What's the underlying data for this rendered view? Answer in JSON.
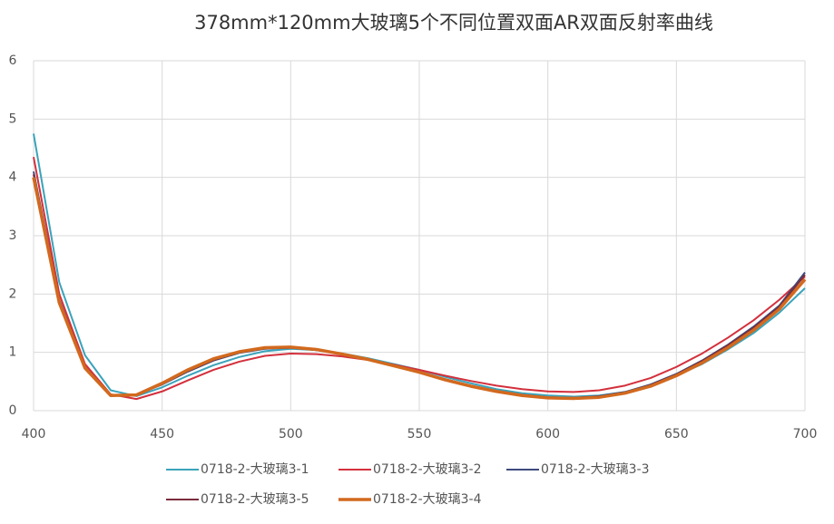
{
  "chart_data": {
    "type": "line",
    "title": "378mm*120mm大玻璃5个不同位置双面AR双面反射率曲线",
    "x": [
      400,
      410,
      420,
      430,
      440,
      450,
      460,
      470,
      480,
      490,
      500,
      510,
      520,
      530,
      540,
      550,
      560,
      570,
      580,
      590,
      600,
      610,
      620,
      630,
      640,
      650,
      660,
      670,
      680,
      690,
      700
    ],
    "series": [
      {
        "name": "0718-2-大玻璃3-1",
        "color": "#3aa3bb",
        "width": 2,
        "values": [
          4.75,
          2.2,
          0.95,
          0.35,
          0.25,
          0.4,
          0.6,
          0.78,
          0.92,
          1.02,
          1.06,
          1.04,
          0.98,
          0.9,
          0.8,
          0.7,
          0.58,
          0.47,
          0.37,
          0.3,
          0.26,
          0.24,
          0.26,
          0.32,
          0.43,
          0.6,
          0.8,
          1.05,
          1.33,
          1.68,
          2.1
        ]
      },
      {
        "name": "0718-2-大玻璃3-2",
        "color": "#d3303c",
        "width": 2,
        "values": [
          4.35,
          2.0,
          0.8,
          0.28,
          0.2,
          0.33,
          0.52,
          0.7,
          0.84,
          0.94,
          0.98,
          0.97,
          0.93,
          0.87,
          0.79,
          0.7,
          0.6,
          0.51,
          0.43,
          0.37,
          0.33,
          0.32,
          0.35,
          0.43,
          0.56,
          0.75,
          0.98,
          1.25,
          1.55,
          1.9,
          2.3
        ]
      },
      {
        "name": "0718-2-大玻璃3-3",
        "color": "#3d4a7c",
        "width": 2,
        "values": [
          4.1,
          1.9,
          0.75,
          0.27,
          0.27,
          0.45,
          0.67,
          0.86,
          0.99,
          1.06,
          1.08,
          1.04,
          0.97,
          0.88,
          0.77,
          0.66,
          0.54,
          0.43,
          0.34,
          0.27,
          0.23,
          0.22,
          0.25,
          0.32,
          0.45,
          0.63,
          0.86,
          1.13,
          1.44,
          1.8,
          2.37
        ]
      },
      {
        "name": "0718-2-大玻璃3-5",
        "color": "#7b2d3c",
        "width": 2,
        "values": [
          4.05,
          1.88,
          0.74,
          0.27,
          0.27,
          0.46,
          0.68,
          0.87,
          1.0,
          1.07,
          1.08,
          1.04,
          0.97,
          0.88,
          0.77,
          0.66,
          0.54,
          0.43,
          0.34,
          0.27,
          0.23,
          0.22,
          0.24,
          0.31,
          0.44,
          0.62,
          0.85,
          1.12,
          1.42,
          1.78,
          2.33
        ]
      },
      {
        "name": "0718-2-大玻璃3-4",
        "color": "#d2691e",
        "width": 3.5,
        "values": [
          4.0,
          1.85,
          0.73,
          0.26,
          0.27,
          0.47,
          0.7,
          0.89,
          1.01,
          1.08,
          1.09,
          1.05,
          0.97,
          0.88,
          0.77,
          0.66,
          0.53,
          0.42,
          0.33,
          0.26,
          0.22,
          0.21,
          0.23,
          0.3,
          0.42,
          0.6,
          0.82,
          1.08,
          1.38,
          1.74,
          2.25
        ]
      }
    ],
    "xlim": [
      400,
      700
    ],
    "xticks": [
      400,
      450,
      500,
      550,
      600,
      650,
      700
    ],
    "ylim": [
      0,
      6
    ],
    "yticks": [
      0,
      1,
      2,
      3,
      4,
      5,
      6
    ],
    "grid": true
  }
}
